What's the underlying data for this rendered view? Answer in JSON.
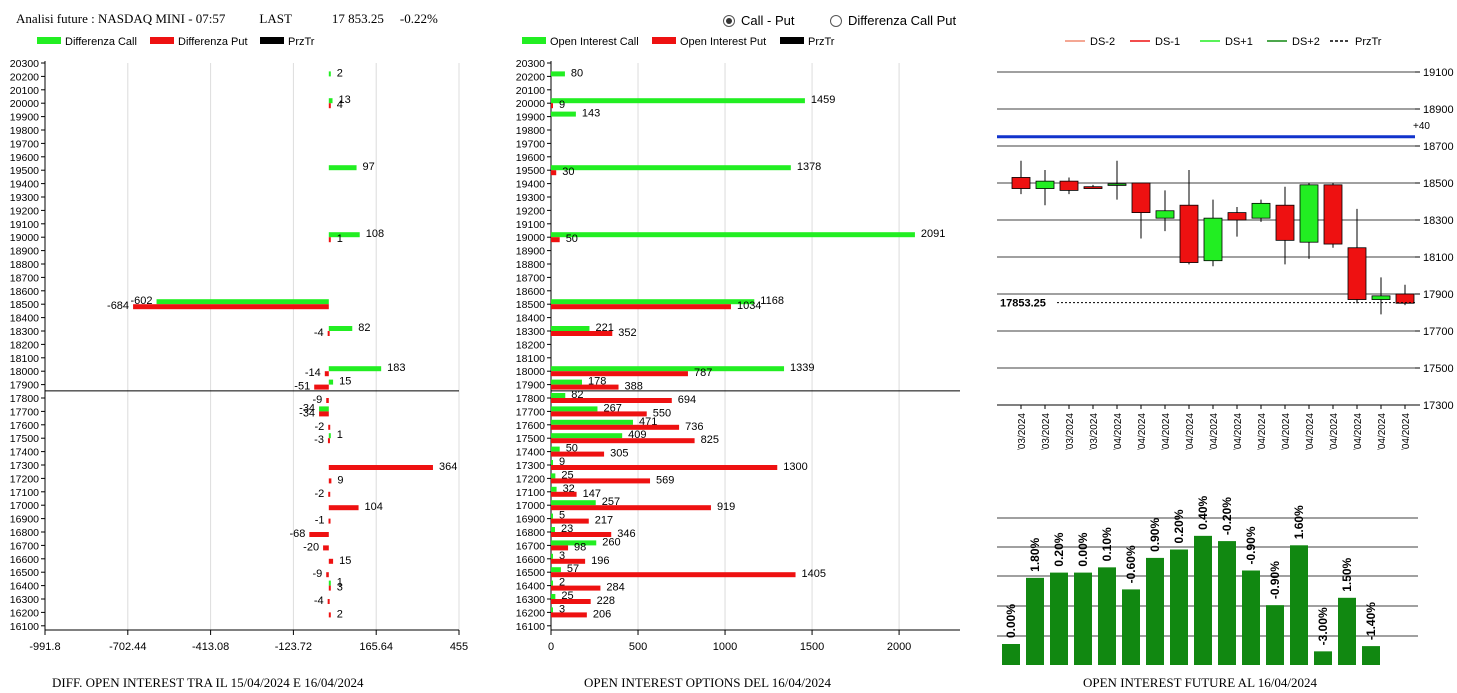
{
  "header": {
    "title": "Analisi future : NASDAQ MINI - 07:57",
    "last_label": "LAST",
    "last_value": "17 853.25",
    "change": "-0.22%"
  },
  "radios": [
    {
      "label": "Call - Put",
      "selected": true
    },
    {
      "label": "Differenza Call Put",
      "selected": false
    }
  ],
  "colors": {
    "green": "#22ee22",
    "red": "#ee1111",
    "dark_green": "#118811",
    "blue": "#1133cc",
    "salmon": "#f08a70"
  },
  "strike_labels": [
    "20300",
    "20200",
    "20100",
    "20000",
    "19900",
    "19800",
    "19700",
    "19600",
    "19500",
    "19400",
    "19300",
    "19200",
    "19100",
    "19000",
    "18900",
    "18800",
    "18700",
    "18600",
    "18500",
    "18400",
    "18300",
    "18200",
    "18100",
    "18000",
    "17900",
    "17800",
    "17700",
    "17600",
    "17500",
    "17400",
    "17300",
    "17200",
    "17100",
    "17000",
    "16900",
    "16800",
    "16700",
    "16600",
    "16500",
    "16400",
    "16300",
    "16200",
    "16100"
  ],
  "chart_data": [
    {
      "type": "bar",
      "title": "DIFF. OPEN INTEREST TRA IL 15/04/2024 E 16/04/2024",
      "legend": [
        "Differenza Call",
        "Differenza Put",
        "PrzTr"
      ],
      "x_ticks": [
        "-991.8",
        "-702.44",
        "-413.08",
        "-123.72",
        "165.64",
        "455"
      ],
      "xlim": [
        -991.8,
        455
      ],
      "price_line": 17853.25,
      "call_diff": [
        {
          "strike": 20200,
          "value": 2,
          "label": "2"
        },
        {
          "strike": 20000,
          "value": 13,
          "label": "13"
        },
        {
          "strike": 19500,
          "value": 97,
          "label": "97"
        },
        {
          "strike": 19000,
          "value": 108,
          "label": "108"
        },
        {
          "strike": 18500,
          "value": -602,
          "label": "-602"
        },
        {
          "strike": 18300,
          "value": 82,
          "label": "82"
        },
        {
          "strike": 18000,
          "value": 183,
          "label": "183"
        },
        {
          "strike": 17900,
          "value": 15,
          "label": "15"
        },
        {
          "strike": 17700,
          "value": -34,
          "label": "-34"
        },
        {
          "strike": 17500,
          "value": 1,
          "label": "1"
        },
        {
          "strike": 16400,
          "value": 1,
          "label": "1"
        }
      ],
      "put_diff": [
        {
          "strike": 20000,
          "value": 4,
          "label": "4"
        },
        {
          "strike": 19000,
          "value": 1,
          "label": "1"
        },
        {
          "strike": 18500,
          "value": -684,
          "label": "-684"
        },
        {
          "strike": 18300,
          "value": -4,
          "label": "-4"
        },
        {
          "strike": 18000,
          "value": -14,
          "label": "-14"
        },
        {
          "strike": 17900,
          "value": -51,
          "label": "-51"
        },
        {
          "strike": 17800,
          "value": -9,
          "label": "-9"
        },
        {
          "strike": 17700,
          "value": -34,
          "label": "-34"
        },
        {
          "strike": 17600,
          "value": -2,
          "label": "-2"
        },
        {
          "strike": 17500,
          "value": -3,
          "label": "-3"
        },
        {
          "strike": 17300,
          "value": 364,
          "label": "364"
        },
        {
          "strike": 17200,
          "value": 9,
          "label": "9"
        },
        {
          "strike": 17100,
          "value": -2,
          "label": "-2"
        },
        {
          "strike": 17000,
          "value": 104,
          "label": "104"
        },
        {
          "strike": 16900,
          "value": -1,
          "label": "-1"
        },
        {
          "strike": 16800,
          "value": -68,
          "label": "-68"
        },
        {
          "strike": 16700,
          "value": -20,
          "label": "-20"
        },
        {
          "strike": 16600,
          "value": 15,
          "label": "15"
        },
        {
          "strike": 16500,
          "value": -9,
          "label": "-9"
        },
        {
          "strike": 16400,
          "value": 3,
          "label": "3"
        },
        {
          "strike": 16300,
          "value": -4,
          "label": "-4"
        },
        {
          "strike": 16200,
          "value": 2,
          "label": "2"
        }
      ]
    },
    {
      "type": "bar",
      "title": "OPEN INTEREST OPTIONS DEL 16/04/2024",
      "legend": [
        "Open Interest Call",
        "Open Interest Put",
        "PrzTr"
      ],
      "x_ticks": [
        "0",
        "500",
        "1000",
        "1500",
        "2000"
      ],
      "xlim": [
        0,
        2350
      ],
      "price_line": 17853.25,
      "call_oi": [
        {
          "strike": 20200,
          "value": 80
        },
        {
          "strike": 20000,
          "value": 1459
        },
        {
          "strike": 19900,
          "value": 143
        },
        {
          "strike": 19500,
          "value": 1378
        },
        {
          "strike": 19000,
          "value": 2091
        },
        {
          "strike": 18500,
          "value": 1168
        },
        {
          "strike": 18300,
          "value": 221
        },
        {
          "strike": 18000,
          "value": 1339
        },
        {
          "strike": 17900,
          "value": 178
        },
        {
          "strike": 17800,
          "value": 82
        },
        {
          "strike": 17700,
          "value": 267
        },
        {
          "strike": 17600,
          "value": 471
        },
        {
          "strike": 17500,
          "value": 409
        },
        {
          "strike": 17400,
          "value": 50
        },
        {
          "strike": 17300,
          "value": 9
        },
        {
          "strike": 17200,
          "value": 25
        },
        {
          "strike": 17100,
          "value": 32
        },
        {
          "strike": 17000,
          "value": 257
        },
        {
          "strike": 16900,
          "value": 5
        },
        {
          "strike": 16800,
          "value": 23
        },
        {
          "strike": 16700,
          "value": 260
        },
        {
          "strike": 16600,
          "value": 3
        },
        {
          "strike": 16500,
          "value": 57
        },
        {
          "strike": 16400,
          "value": 2
        },
        {
          "strike": 16300,
          "value": 25
        },
        {
          "strike": 16200,
          "value": 3
        }
      ],
      "put_oi": [
        {
          "strike": 20000,
          "value": 9
        },
        {
          "strike": 19500,
          "value": 30
        },
        {
          "strike": 19000,
          "value": 50
        },
        {
          "strike": 18500,
          "value": 1034
        },
        {
          "strike": 18300,
          "value": 352
        },
        {
          "strike": 18000,
          "value": 787
        },
        {
          "strike": 17900,
          "value": 388
        },
        {
          "strike": 17800,
          "value": 694
        },
        {
          "strike": 17700,
          "value": 550
        },
        {
          "strike": 17600,
          "value": 736
        },
        {
          "strike": 17500,
          "value": 825
        },
        {
          "strike": 17400,
          "value": 305
        },
        {
          "strike": 17300,
          "value": 1300
        },
        {
          "strike": 17200,
          "value": 569
        },
        {
          "strike": 17100,
          "value": 147
        },
        {
          "strike": 17000,
          "value": 919
        },
        {
          "strike": 16900,
          "value": 217
        },
        {
          "strike": 16800,
          "value": 346
        },
        {
          "strike": 16700,
          "value": 98
        },
        {
          "strike": 16600,
          "value": 196
        },
        {
          "strike": 16500,
          "value": 1405
        },
        {
          "strike": 16400,
          "value": 284
        },
        {
          "strike": 16300,
          "value": 228
        },
        {
          "strike": 16200,
          "value": 206
        }
      ]
    },
    {
      "type": "candlestick",
      "legend": [
        "DS-2",
        "DS-1",
        "DS+1",
        "DS+2",
        "PrzTr"
      ],
      "y_ticks": [
        "19100",
        "18900",
        "18700",
        "18500",
        "18300",
        "18100",
        "17900",
        "17700",
        "17500",
        "17300"
      ],
      "ylim": [
        17300,
        19100
      ],
      "level_line": {
        "value": 18750,
        "label": "+40"
      },
      "price_label": "17853.25",
      "price": 17853.25,
      "dates": [
        "26/03/2024",
        "27/03/2024",
        "28/03/2024",
        "29/03/2024",
        "01/04/2024",
        "02/04/2024",
        "03/04/2024",
        "04/04/2024",
        "05/04/2024",
        "08/04/2024",
        "09/04/2024",
        "10/04/2024",
        "11/04/2024",
        "12/04/2024",
        "15/04/2024",
        "16/04/2024",
        "17/04/2024"
      ],
      "candles": [
        {
          "open": 18530,
          "close": 18470,
          "high": 18620,
          "low": 18440
        },
        {
          "open": 18470,
          "close": 18510,
          "high": 18570,
          "low": 18380
        },
        {
          "open": 18510,
          "close": 18460,
          "high": 18530,
          "low": 18440
        },
        {
          "open": 18480,
          "close": 18470,
          "high": 18490,
          "low": 18470
        },
        {
          "open": 18490,
          "close": 18495,
          "high": 18620,
          "low": 18410
        },
        {
          "open": 18500,
          "close": 18340,
          "high": 18500,
          "low": 18200
        },
        {
          "open": 18310,
          "close": 18350,
          "high": 18460,
          "low": 18240
        },
        {
          "open": 18380,
          "close": 18070,
          "high": 18570,
          "low": 18060
        },
        {
          "open": 18080,
          "close": 18310,
          "high": 18410,
          "low": 18050
        },
        {
          "open": 18340,
          "close": 18300,
          "high": 18370,
          "low": 18210
        },
        {
          "open": 18310,
          "close": 18390,
          "high": 18410,
          "low": 18290
        },
        {
          "open": 18380,
          "close": 18190,
          "high": 18480,
          "low": 18060
        },
        {
          "open": 18180,
          "close": 18490,
          "high": 18500,
          "low": 18090
        },
        {
          "open": 18490,
          "close": 18170,
          "high": 18500,
          "low": 18150
        },
        {
          "open": 18150,
          "close": 17870,
          "high": 18360,
          "low": 17850
        },
        {
          "open": 17870,
          "close": 17890,
          "high": 17990,
          "low": 17790
        },
        {
          "open": 17900,
          "close": 17850,
          "high": 17950,
          "low": 17840
        }
      ]
    },
    {
      "type": "bar",
      "title": "OPEN INTEREST FUTURE AL 16/04/2024",
      "bars": [
        {
          "label": "0.00%",
          "value": 20
        },
        {
          "label": "1.80%",
          "value": 83
        },
        {
          "label": "0.20%",
          "value": 88
        },
        {
          "label": "0.00%",
          "value": 88
        },
        {
          "label": "0.10%",
          "value": 93
        },
        {
          "label": "-0.60%",
          "value": 72
        },
        {
          "label": "0.90%",
          "value": 102
        },
        {
          "label": "0.20%",
          "value": 110
        },
        {
          "label": "0.40%",
          "value": 123
        },
        {
          "label": "-0.20%",
          "value": 118
        },
        {
          "label": "-0.90%",
          "value": 90
        },
        {
          "label": "-0.90%",
          "value": 57
        },
        {
          "label": "1.60%",
          "value": 114
        },
        {
          "label": "-3.00%",
          "value": 13
        },
        {
          "label": "1.50%",
          "value": 64
        },
        {
          "label": "-1.40%",
          "value": 18
        }
      ]
    }
  ]
}
